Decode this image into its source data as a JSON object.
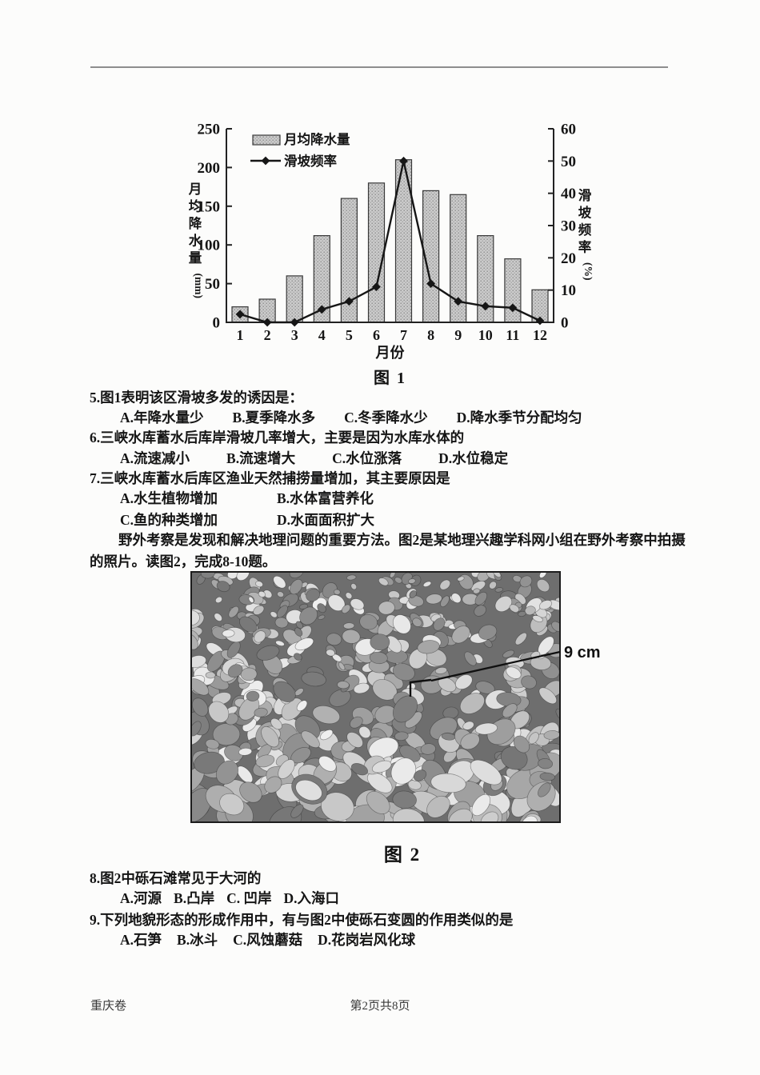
{
  "figure1": {
    "caption": "图 1"
  },
  "figure2": {
    "caption": "图 2",
    "annotation": "9 cm"
  },
  "chart_data": {
    "type": "combo",
    "categories": [
      "1",
      "2",
      "3",
      "4",
      "5",
      "6",
      "7",
      "8",
      "9",
      "10",
      "11",
      "12"
    ],
    "xlabel": "月份",
    "ylabel_left": "月均降水量(mm)",
    "ylabel_right": "滑坡频率(%)",
    "ylim_left": [
      0,
      250
    ],
    "ylim_right": [
      0,
      60
    ],
    "yticks_left": [
      0,
      50,
      100,
      150,
      200,
      250
    ],
    "yticks_right": [
      0,
      10,
      20,
      30,
      40,
      50,
      60
    ],
    "legend_position": "top-left",
    "grid": false,
    "series": [
      {
        "name": "月均降水量",
        "type": "bar",
        "axis": "left",
        "values": [
          20,
          30,
          60,
          112,
          160,
          180,
          210,
          170,
          165,
          112,
          82,
          42
        ]
      },
      {
        "name": "滑坡频率",
        "type": "line",
        "axis": "right",
        "values": [
          2.5,
          0,
          0,
          4,
          6.5,
          11,
          50,
          12,
          6.5,
          5,
          4.5,
          0.5
        ]
      }
    ]
  },
  "questions": [
    {
      "stem": "5.图1表明该区滑坡多发的诱因是：",
      "options": [
        "A.年降水量少",
        "B.夏季降水多",
        "C.冬季降水少",
        "D.降水季节分配均匀"
      ]
    },
    {
      "stem": "6.三峡水库蓄水后库岸滑坡几率增大，主要是因为水库水体的",
      "options": [
        "A.流速减小",
        "B.流速增大",
        "C.水位涨落",
        "D.水位稳定"
      ]
    },
    {
      "stem": "7.三峡水库蓄水后库区渔业天然捕捞量增加，其主要原因是",
      "options": [
        "A.水生植物增加",
        "B.水体富营养化",
        "C.鱼的种类增加",
        "D.水面面积扩大"
      ]
    },
    {
      "stem": "8.图2中砾石滩常见于大河的",
      "options": [
        "A.河源",
        "B.凸岸",
        "C. 凹岸",
        "D.入海口"
      ]
    },
    {
      "stem": "9.下列地貌形态的形成作用中，有与图2中使砾石变圆的作用类似的是",
      "options": [
        "A.石笋",
        "B.冰斗",
        "C.风蚀蘑菇",
        "D.花岗岩风化球"
      ]
    }
  ],
  "passage": "野外考察是发现和解决地理问题的重要方法。图2是某地理兴趣学科网小组在野外考察中拍摄的照片。读图2，完成8-10题。",
  "footer": {
    "left": "重庆卷",
    "center": "第2页共8页"
  }
}
